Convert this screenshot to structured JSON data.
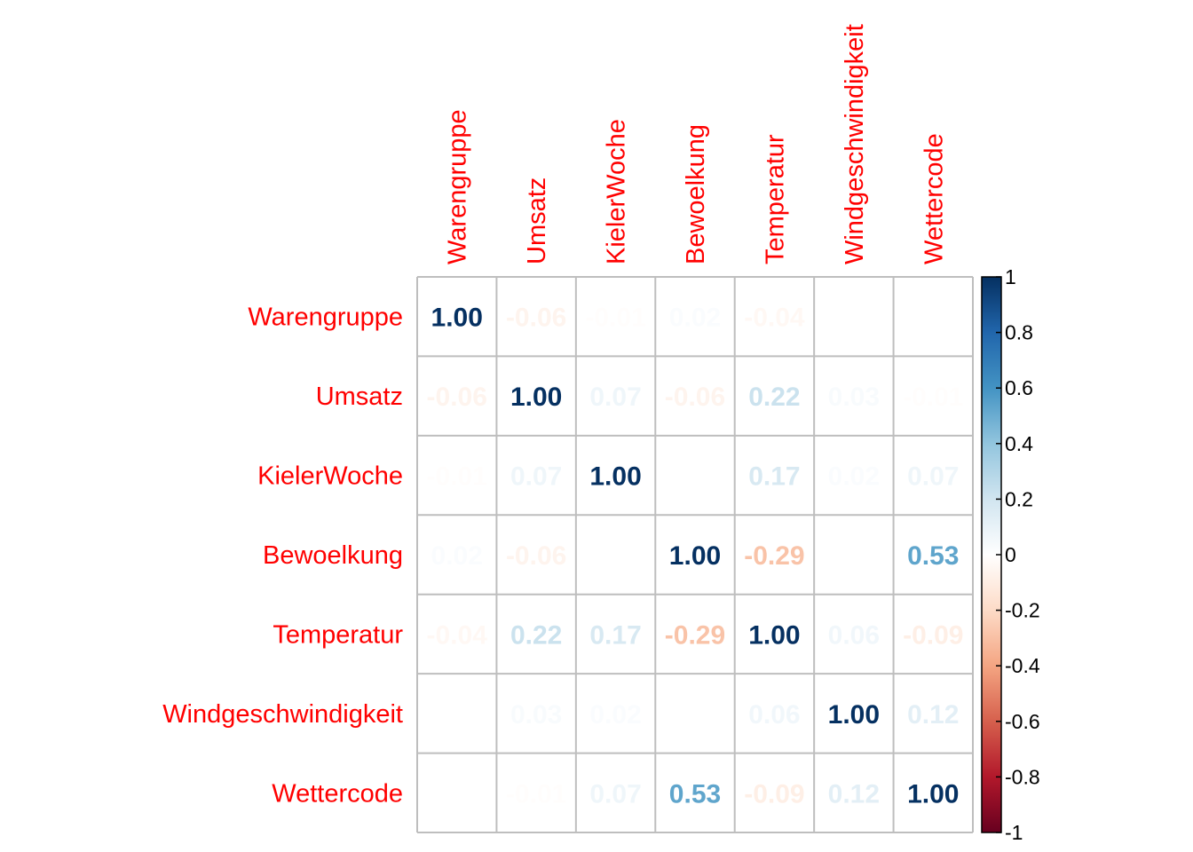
{
  "chart_data": {
    "type": "heatmap",
    "variables": [
      "Warengruppe",
      "Umsatz",
      "KielerWoche",
      "Bewoelkung",
      "Temperatur",
      "Windgeschwindigkeit",
      "Wettercode"
    ],
    "matrix": [
      [
        1.0,
        -0.06,
        -0.01,
        0.02,
        -0.04,
        0.0,
        0.0
      ],
      [
        -0.06,
        1.0,
        0.07,
        -0.06,
        0.22,
        0.03,
        -0.01
      ],
      [
        -0.01,
        0.07,
        1.0,
        0.0,
        0.17,
        0.02,
        0.07
      ],
      [
        0.02,
        -0.06,
        0.0,
        1.0,
        -0.29,
        0.0,
        0.53
      ],
      [
        -0.04,
        0.22,
        0.17,
        -0.29,
        1.0,
        0.06,
        -0.09
      ],
      [
        0.0,
        0.03,
        0.02,
        0.0,
        0.06,
        1.0,
        0.12
      ],
      [
        0.0,
        -0.01,
        0.07,
        0.53,
        -0.09,
        0.12,
        1.0
      ]
    ],
    "colorbar": {
      "ticks": [
        "1",
        "0.8",
        "0.6",
        "0.4",
        "0.2",
        "0",
        "-0.2",
        "-0.4",
        "-0.6",
        "-0.8",
        "-1"
      ],
      "range": [
        -1,
        1
      ]
    },
    "label_color": "#ff0000",
    "colormap": "RdBu"
  }
}
